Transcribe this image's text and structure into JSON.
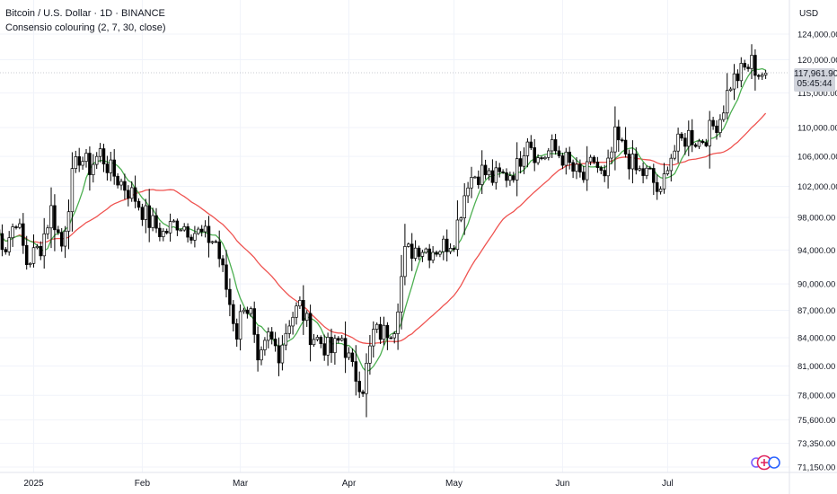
{
  "header": {
    "title": "Bitcoin / U.S. Dollar · 1D · BINANCE",
    "indicator": "Consensio colouring (2, 7, 30, close)"
  },
  "price_axis": {
    "currency": "USD",
    "labels": [
      "124,000.00",
      "120,000.00",
      "115,000.00",
      "110,000.00",
      "106,000.00",
      "102,000.00",
      "98,000.00",
      "94,000.00",
      "90,000.00",
      "87,000.00",
      "84,000.00",
      "81,000.00",
      "78,000.00",
      "75,600.00",
      "73,350.00",
      "71,150.00"
    ]
  },
  "time_axis": {
    "labels": [
      "2025",
      "Feb",
      "Mar",
      "Apr",
      "May",
      "Jun",
      "Jul"
    ]
  },
  "last_price": {
    "value": "117,961.90",
    "countdown": "05:45:44"
  },
  "colors": {
    "up_candle": "#ffffff",
    "down_candle": "#000000",
    "wick": "#000000",
    "fast_ma": "#4caf50",
    "slow_ma": "#ef5350",
    "grid": "#f0f3fa"
  },
  "logo_icon": "tradingview-logo-icon",
  "chart_data": {
    "type": "candlestick",
    "price_scale": "log",
    "ylim": [
      71150,
      124000
    ],
    "xlim_days": [
      -11,
      220
    ],
    "month_starts": {
      "2025": 0,
      "Feb": 31,
      "Mar": 59,
      "Apr": 90,
      "May": 120,
      "Jun": 151,
      "Jul": 181
    },
    "price_anchors": [
      [
        -11,
        96500
      ],
      [
        -8,
        94500
      ],
      [
        -5,
        98000
      ],
      [
        -2,
        92500
      ],
      [
        2,
        94500
      ],
      [
        5,
        99000
      ],
      [
        8,
        94500
      ],
      [
        11,
        103000
      ],
      [
        13,
        106000
      ],
      [
        16,
        104500
      ],
      [
        19,
        106500
      ],
      [
        22,
        104000
      ],
      [
        26,
        102000
      ],
      [
        29,
        100500
      ],
      [
        33,
        97500
      ],
      [
        37,
        96000
      ],
      [
        41,
        97500
      ],
      [
        45,
        96500
      ],
      [
        48,
        95800
      ],
      [
        52,
        95000
      ],
      [
        55,
        89500
      ],
      [
        58,
        84500
      ],
      [
        60,
        88000
      ],
      [
        62,
        86500
      ],
      [
        64,
        80500
      ],
      [
        67,
        84000
      ],
      [
        70,
        82500
      ],
      [
        73,
        86000
      ],
      [
        76,
        87500
      ],
      [
        79,
        84500
      ],
      [
        82,
        83500
      ],
      [
        85,
        82500
      ],
      [
        88,
        84000
      ],
      [
        91,
        80500
      ],
      [
        94,
        79000
      ],
      [
        97,
        84500
      ],
      [
        100,
        84500
      ],
      [
        103,
        85500
      ],
      [
        106,
        93500
      ],
      [
        110,
        94500
      ],
      [
        113,
        94000
      ],
      [
        117,
        94500
      ],
      [
        120,
        95500
      ],
      [
        124,
        103000
      ],
      [
        128,
        104000
      ],
      [
        131,
        103000
      ],
      [
        135,
        103500
      ],
      [
        138,
        104500
      ],
      [
        141,
        109000
      ],
      [
        144,
        105500
      ],
      [
        148,
        107000
      ],
      [
        151,
        106000
      ],
      [
        154,
        104000
      ],
      [
        157,
        103000
      ],
      [
        160,
        105500
      ],
      [
        163,
        102500
      ],
      [
        166,
        108500
      ],
      [
        169,
        106500
      ],
      [
        172,
        104000
      ],
      [
        176,
        103500
      ],
      [
        179,
        100500
      ],
      [
        181,
        105500
      ],
      [
        184,
        107500
      ],
      [
        187,
        109000
      ],
      [
        190,
        108000
      ],
      [
        193,
        109500
      ],
      [
        196,
        111500
      ],
      [
        199,
        116500
      ],
      [
        202,
        118000
      ],
      [
        205,
        119500
      ],
      [
        207,
        118000
      ],
      [
        209,
        117900
      ]
    ],
    "fast_ma_period": 7,
    "slow_ma_period": 30,
    "last_close": 117961.9
  }
}
